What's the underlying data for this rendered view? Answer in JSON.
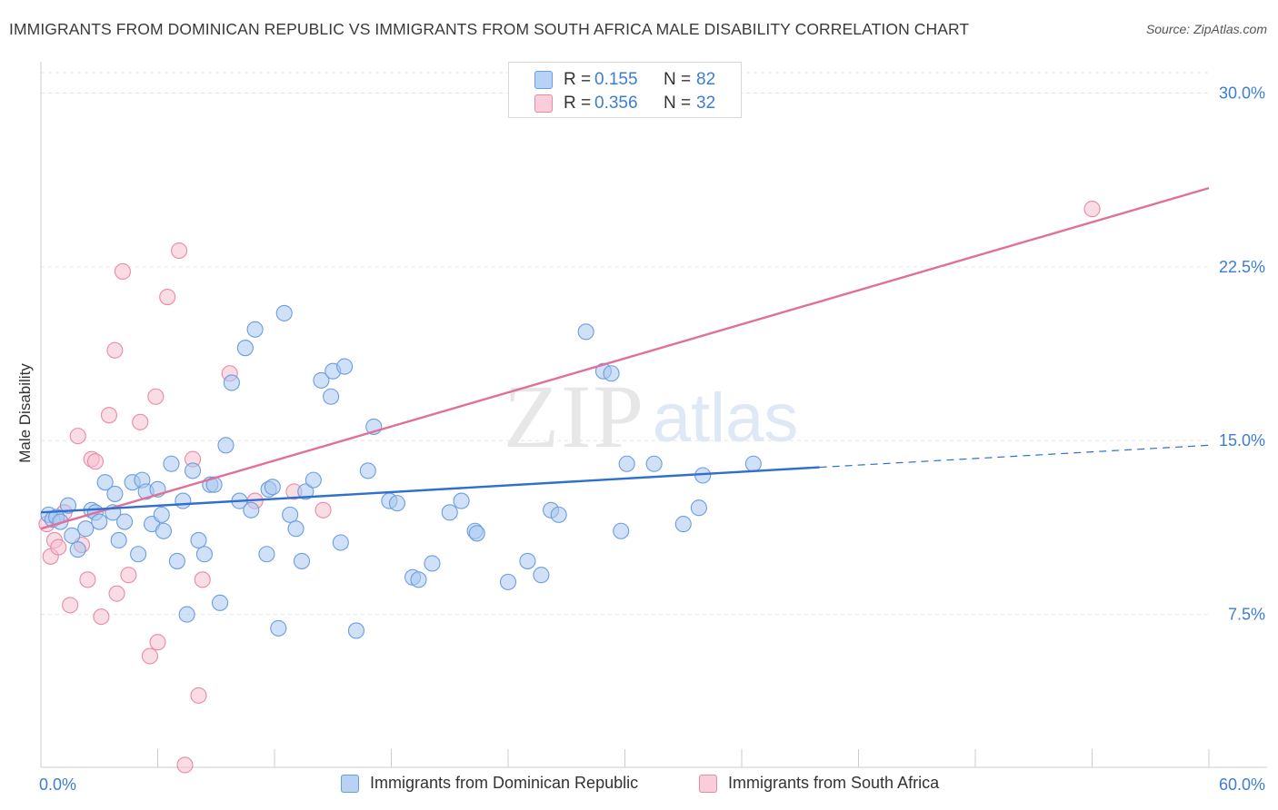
{
  "title": "IMMIGRANTS FROM DOMINICAN REPUBLIC VS IMMIGRANTS FROM SOUTH AFRICA MALE DISABILITY CORRELATION CHART",
  "source": "Source: ZipAtlas.com",
  "watermark": {
    "zip": "ZIP",
    "atlas": "atlas"
  },
  "legend_top": [
    {
      "r_label": "R =",
      "r_value": "0.155",
      "n_label": "N =",
      "n_value": "82"
    },
    {
      "r_label": "R =",
      "r_value": "0.356",
      "n_label": "N =",
      "n_value": "32"
    }
  ],
  "legend_bottom": [
    {
      "label": "Immigrants from Dominican Republic"
    },
    {
      "label": "Immigrants from South Africa"
    }
  ],
  "colors": {
    "blue_fill": "#a9c8f0",
    "blue_stroke": "#6a9de0",
    "blue_line": "#2e6fd0",
    "pink_fill": "#f6bfd0",
    "pink_stroke": "#e88aa8",
    "pink_line": "#e07099",
    "tick_text": "#3d7dd6",
    "grid": "#e6e6e6"
  },
  "chart_data": {
    "type": "scatter",
    "title": "IMMIGRANTS FROM DOMINICAN REPUBLIC VS IMMIGRANTS FROM SOUTH AFRICA MALE DISABILITY CORRELATION CHART",
    "xlabel": "",
    "ylabel": "Male Disability",
    "xlim": [
      0,
      60
    ],
    "ylim": [
      0.9,
      31.0
    ],
    "x_tick_labels": [
      {
        "value": 0,
        "label": "0.0%"
      },
      {
        "value": 60,
        "label": "60.0%"
      }
    ],
    "y_tick_labels": [
      {
        "value": 7.5,
        "label": "7.5%"
      },
      {
        "value": 15.0,
        "label": "15.0%"
      },
      {
        "value": 22.5,
        "label": "22.5%"
      },
      {
        "value": 30.0,
        "label": "30.0%"
      }
    ],
    "series": [
      {
        "name": "Immigrants from Dominican Republic",
        "color": "#a9c8f0",
        "r": 0.155,
        "n": 82,
        "trend": {
          "x0": 0,
          "y0": 11.9,
          "x1": 40,
          "y1": 13.85,
          "dashed_to_x": 60,
          "dashed_to_y": 14.8
        },
        "points": [
          [
            0.4,
            11.8
          ],
          [
            0.6,
            11.6
          ],
          [
            0.8,
            11.7
          ],
          [
            1.0,
            11.5
          ],
          [
            1.4,
            12.2
          ],
          [
            1.6,
            10.9
          ],
          [
            1.9,
            10.3
          ],
          [
            2.3,
            11.2
          ],
          [
            2.6,
            12.0
          ],
          [
            2.8,
            11.9
          ],
          [
            3.0,
            11.5
          ],
          [
            3.3,
            13.2
          ],
          [
            3.7,
            11.9
          ],
          [
            3.8,
            12.7
          ],
          [
            4.0,
            10.7
          ],
          [
            4.3,
            11.5
          ],
          [
            4.7,
            13.2
          ],
          [
            5.0,
            10.1
          ],
          [
            5.2,
            13.3
          ],
          [
            5.4,
            12.8
          ],
          [
            5.7,
            11.4
          ],
          [
            6.0,
            12.9
          ],
          [
            6.2,
            11.8
          ],
          [
            6.3,
            11.1
          ],
          [
            6.7,
            14.0
          ],
          [
            7.0,
            9.8
          ],
          [
            7.3,
            12.4
          ],
          [
            7.5,
            7.5
          ],
          [
            7.8,
            13.7
          ],
          [
            8.1,
            10.7
          ],
          [
            8.4,
            10.1
          ],
          [
            8.7,
            13.1
          ],
          [
            8.9,
            13.1
          ],
          [
            9.2,
            8.0
          ],
          [
            9.5,
            14.8
          ],
          [
            9.8,
            17.5
          ],
          [
            10.2,
            12.4
          ],
          [
            10.5,
            19.0
          ],
          [
            10.8,
            12.0
          ],
          [
            11.0,
            19.8
          ],
          [
            11.6,
            10.1
          ],
          [
            11.7,
            12.9
          ],
          [
            11.9,
            13.0
          ],
          [
            12.2,
            6.9
          ],
          [
            12.5,
            20.5
          ],
          [
            12.8,
            11.8
          ],
          [
            13.1,
            11.2
          ],
          [
            13.4,
            9.8
          ],
          [
            13.6,
            12.8
          ],
          [
            14.0,
            13.3
          ],
          [
            14.4,
            17.6
          ],
          [
            14.9,
            16.9
          ],
          [
            15.0,
            18.0
          ],
          [
            15.4,
            10.6
          ],
          [
            15.6,
            18.2
          ],
          [
            16.2,
            6.8
          ],
          [
            16.8,
            13.7
          ],
          [
            17.1,
            15.6
          ],
          [
            17.9,
            12.4
          ],
          [
            18.3,
            12.3
          ],
          [
            19.1,
            9.1
          ],
          [
            19.4,
            9.0
          ],
          [
            20.1,
            9.7
          ],
          [
            21.0,
            11.9
          ],
          [
            21.6,
            12.4
          ],
          [
            22.3,
            11.1
          ],
          [
            22.4,
            11.0
          ],
          [
            24.0,
            8.9
          ],
          [
            25.0,
            9.8
          ],
          [
            25.7,
            9.2
          ],
          [
            26.2,
            12.0
          ],
          [
            26.6,
            11.8
          ],
          [
            28.0,
            19.7
          ],
          [
            28.9,
            18.0
          ],
          [
            29.3,
            17.9
          ],
          [
            29.8,
            11.1
          ],
          [
            30.1,
            14.0
          ],
          [
            31.5,
            14.0
          ],
          [
            33.0,
            11.4
          ],
          [
            33.8,
            12.1
          ],
          [
            34.0,
            13.5
          ],
          [
            36.6,
            14.0
          ]
        ]
      },
      {
        "name": "Immigrants from South Africa",
        "color": "#f6bfd0",
        "r": 0.356,
        "n": 32,
        "trend": {
          "x0": 0,
          "y0": 11.2,
          "x1": 60,
          "y1": 25.9
        },
        "points": [
          [
            0.3,
            11.4
          ],
          [
            0.5,
            10.0
          ],
          [
            0.7,
            10.7
          ],
          [
            0.9,
            10.4
          ],
          [
            1.2,
            11.9
          ],
          [
            1.5,
            7.9
          ],
          [
            1.9,
            15.2
          ],
          [
            2.1,
            10.5
          ],
          [
            2.4,
            9.0
          ],
          [
            2.6,
            14.2
          ],
          [
            2.8,
            14.1
          ],
          [
            3.1,
            7.4
          ],
          [
            3.5,
            16.1
          ],
          [
            3.8,
            18.9
          ],
          [
            3.9,
            8.4
          ],
          [
            4.2,
            22.3
          ],
          [
            4.5,
            9.2
          ],
          [
            5.1,
            15.8
          ],
          [
            5.6,
            5.7
          ],
          [
            5.9,
            16.9
          ],
          [
            6.0,
            6.3
          ],
          [
            6.5,
            21.2
          ],
          [
            7.1,
            23.2
          ],
          [
            7.4,
            1.0
          ],
          [
            7.8,
            14.2
          ],
          [
            8.1,
            4.0
          ],
          [
            8.3,
            9.0
          ],
          [
            9.7,
            17.9
          ],
          [
            11.0,
            12.4
          ],
          [
            13.0,
            12.8
          ],
          [
            14.5,
            12.0
          ],
          [
            54.0,
            25.0
          ]
        ]
      }
    ]
  }
}
